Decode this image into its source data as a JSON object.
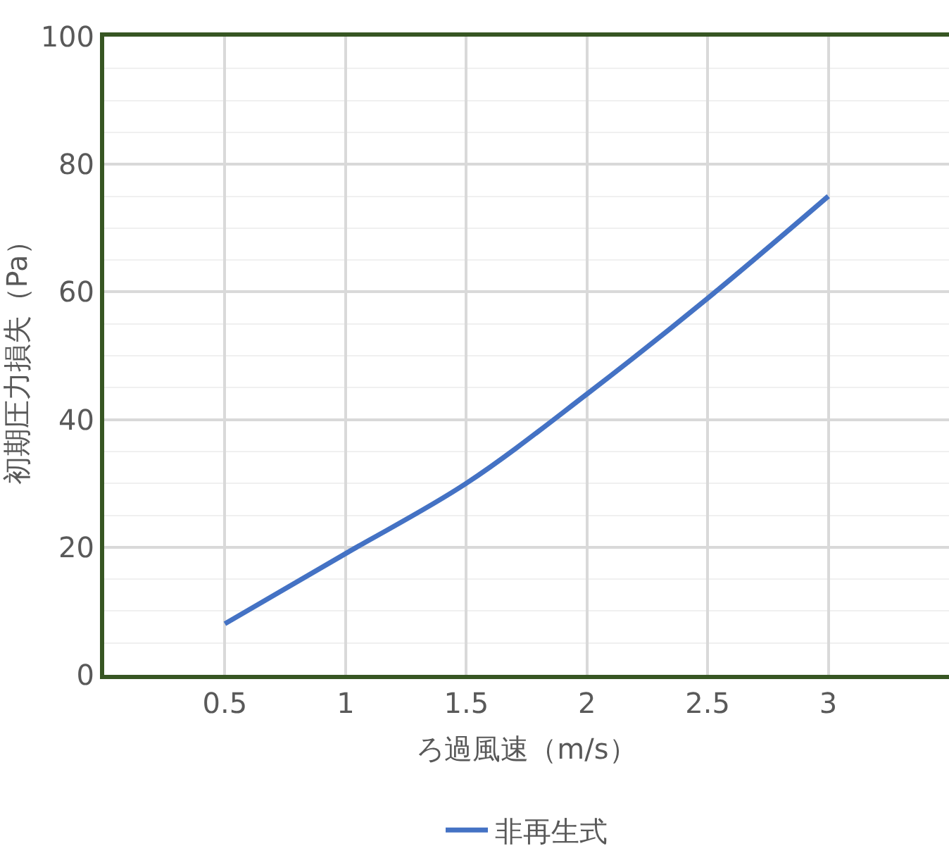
{
  "chart_data": {
    "type": "line",
    "xlabel": "ろ過風速（m/s）",
    "ylabel": "初期圧力損失（Pa）",
    "x": [
      0.5,
      1,
      1.5,
      2,
      2.5,
      3
    ],
    "series": [
      {
        "name": "非再生式",
        "color": "#4472c4",
        "values": [
          8,
          19,
          30,
          44,
          59,
          75
        ]
      }
    ],
    "xlim": [
      0,
      3.5
    ],
    "xticks": [
      0.5,
      1,
      1.5,
      2,
      2.5,
      3
    ],
    "ylim": [
      0,
      100
    ],
    "yticks": [
      0,
      20,
      40,
      60,
      80,
      100
    ],
    "grid": true,
    "legend": "bottom",
    "marker": "none",
    "line_style": "solid"
  }
}
